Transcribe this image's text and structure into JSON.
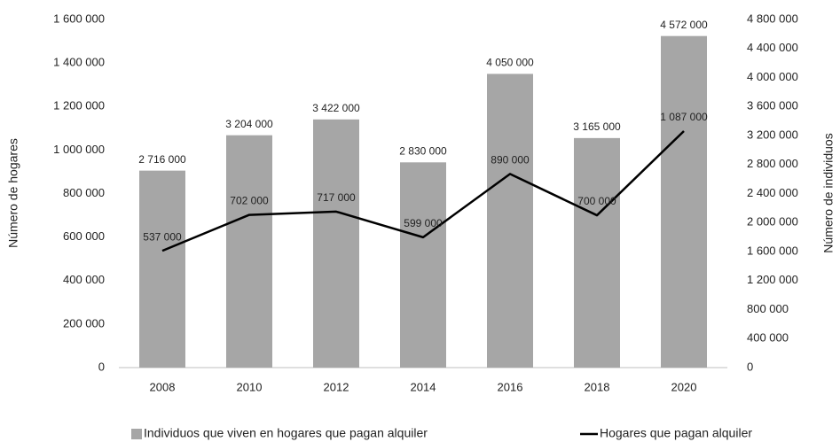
{
  "chart_data": {
    "type": "bar",
    "categories": [
      "2008",
      "2010",
      "2012",
      "2014",
      "2016",
      "2018",
      "2020"
    ],
    "series": [
      {
        "name": "Individuos que viven en hogares que pagan alquiler",
        "type": "bar",
        "axis": "y2",
        "color": "#a6a6a6",
        "values": [
          2716000,
          3204000,
          3422000,
          2830000,
          4050000,
          3165000,
          4572000
        ],
        "value_labels": [
          "2 716 000",
          "3 204 000",
          "3 422 000",
          "2 830 000",
          "4 050 000",
          "3 165 000",
          "4 572 000"
        ]
      },
      {
        "name": "Hogares que pagan alquiler",
        "type": "line",
        "color": "#000000",
        "values": [
          537000,
          702000,
          717000,
          599000,
          890000,
          700000,
          1087000
        ],
        "value_labels": [
          "537 000",
          "702 000",
          "717 000",
          "599 000",
          "890 000",
          "700 000",
          "1 087 000"
        ]
      }
    ],
    "ylabel": "Número de hogares",
    "y2label": "Número de individuos",
    "ylim": [
      0,
      1600000
    ],
    "yticks": [
      0,
      {
        "value": 200000,
        "label": "200 000"
      },
      {
        "value": 400000,
        "label": "400 000"
      },
      {
        "value": 600000,
        "label": "600 000"
      },
      {
        "value": 800000,
        "label": "800 000"
      },
      {
        "value": 1000000,
        "label": "1 000 000"
      },
      {
        "value": 1200000,
        "label": "1 200 000"
      },
      {
        "value": 1400000,
        "label": "1 400 000"
      },
      {
        "value": 1600000,
        "label": "1 600 000"
      }
    ],
    "y2lim": [
      0,
      4800000
    ],
    "y2ticks": [
      0,
      {
        "value": 400000,
        "label": "400 000"
      },
      {
        "value": 800000,
        "label": "800 000"
      },
      {
        "value": 1200000,
        "label": "1 200 000"
      },
      {
        "value": 1600000,
        "label": "1 600 000"
      },
      {
        "value": 2000000,
        "label": "2 000 000"
      },
      {
        "value": 2400000,
        "label": "2 400 000"
      },
      {
        "value": 2800000,
        "label": "2 800 000"
      },
      {
        "value": 3200000,
        "label": "3 200 000"
      },
      {
        "value": 3600000,
        "label": "3 600 000"
      },
      {
        "value": 4000000,
        "label": "4 000 000"
      },
      {
        "value": 4400000,
        "label": "4 400 000"
      },
      {
        "value": 4800000,
        "label": "4 800 000"
      }
    ],
    "grid": false,
    "legend": "bottom"
  }
}
